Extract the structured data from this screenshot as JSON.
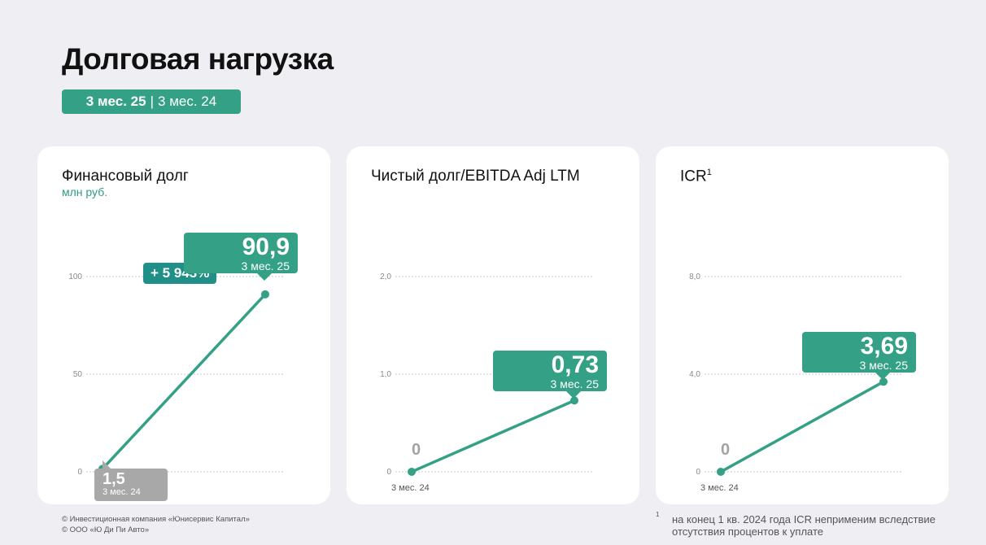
{
  "page": {
    "title": "Долговая нагрузка",
    "period_current": "3 мес. 25",
    "period_separator": "|",
    "period_previous": "3 мес. 24"
  },
  "colors": {
    "accent": "#34a085",
    "growth": "#1f8f87",
    "previous": "#a8a8a8",
    "background": "#eeeef3"
  },
  "cards": [
    {
      "title": "Финансовый долг",
      "title_sup": "",
      "subtitle": "млн руб.",
      "current_value": "90,9",
      "current_period": "3 мес. 25",
      "previous_value": "1,5",
      "previous_period": "3 мес. 24",
      "growth": "+ 5 943%",
      "x_label": ""
    },
    {
      "title": "Чистый долг/EBITDA Adj LTM",
      "title_sup": "",
      "subtitle": "",
      "current_value": "0,73",
      "current_period": "3 мес. 25",
      "previous_value": "0",
      "previous_period": "",
      "growth": "",
      "x_label": "3 мес. 24"
    },
    {
      "title": "ICR",
      "title_sup": "1",
      "subtitle": "",
      "current_value": "3,69",
      "current_period": "3 мес. 25",
      "previous_value": "0",
      "previous_period": "",
      "growth": "",
      "x_label": "3 мес. 24"
    }
  ],
  "chart_data": [
    {
      "type": "line",
      "title": "Финансовый долг",
      "ylabel": "млн руб.",
      "x": [
        "3 мес. 24",
        "3 мес. 25"
      ],
      "values": [
        1.5,
        90.9
      ],
      "ylim": [
        0,
        100
      ],
      "yticks": [
        0,
        50,
        100
      ],
      "ytick_labels": [
        "0",
        "50",
        "100"
      ],
      "grid": true
    },
    {
      "type": "line",
      "title": "Чистый долг/EBITDA Adj LTM",
      "x": [
        "3 мес. 24",
        "3 мес. 25"
      ],
      "values": [
        0,
        0.73
      ],
      "ylim": [
        0,
        2
      ],
      "yticks": [
        0,
        1,
        2
      ],
      "ytick_labels": [
        "0",
        "1,0",
        "2,0"
      ],
      "grid": true
    },
    {
      "type": "line",
      "title": "ICR",
      "x": [
        "3 мес. 24",
        "3 мес. 25"
      ],
      "values": [
        0,
        3.69
      ],
      "ylim": [
        0,
        8
      ],
      "yticks": [
        0,
        4,
        8
      ],
      "ytick_labels": [
        "0",
        "4,0",
        "8,0"
      ],
      "grid": true
    }
  ],
  "footer": {
    "copyright_1": "© Инвестиционная компания «Юнисервис Капитал»",
    "copyright_2": "© ООО «Ю Ди Пи Авто»",
    "footnote_mark": "1",
    "footnote_text": "на конец 1 кв. 2024 года ICR неприменим вследствие отсутствия процентов к уплате"
  }
}
